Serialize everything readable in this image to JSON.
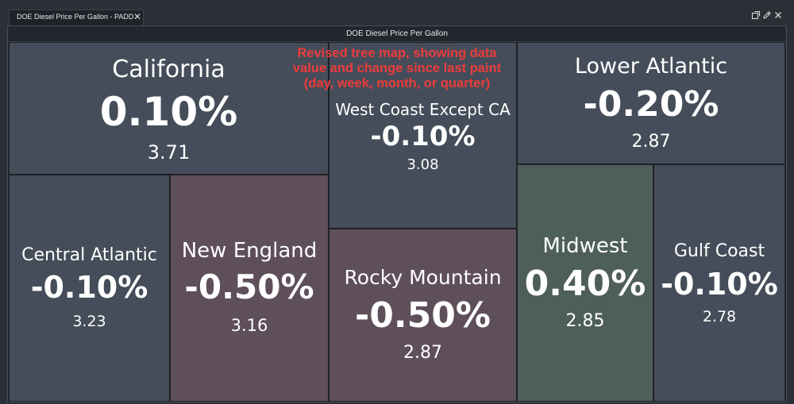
{
  "tab": {
    "label": "DOE Diesel Price Per Gallon - PADD",
    "close_glyph": "✕"
  },
  "window_controls": [
    {
      "icon": "popout-icon"
    },
    {
      "icon": "edit-icon"
    },
    {
      "icon": "close-icon"
    }
  ],
  "panel": {
    "title": "DOE Diesel Price Per Gallon"
  },
  "annotation": {
    "line1": "Revised tree map, showing data",
    "line2": "value and change since last paint",
    "line3": "(day, week, month, or quarter)"
  },
  "colors": {
    "neutral": "#444d59",
    "negative_strong": "#5e4f5a",
    "positive_strong": "#4e5e5a",
    "annotation": "#ec3c3c"
  },
  "tiles": {
    "california": {
      "name": "California",
      "change": "0.10%",
      "value": "3.71"
    },
    "west_coast": {
      "name": "West Coast Except CA",
      "change": "-0.10%",
      "value": "3.08"
    },
    "lower_atlantic": {
      "name": "Lower Atlantic",
      "change": "-0.20%",
      "value": "2.87"
    },
    "central_atlantic": {
      "name": "Central Atlantic",
      "change": "-0.10%",
      "value": "3.23"
    },
    "new_england": {
      "name": "New England",
      "change": "-0.50%",
      "value": "3.16"
    },
    "rocky_mountain": {
      "name": "Rocky Mountain",
      "change": "-0.50%",
      "value": "2.87"
    },
    "midwest": {
      "name": "Midwest",
      "change": "0.40%",
      "value": "2.85"
    },
    "gulf_coast": {
      "name": "Gulf Coast",
      "change": "-0.10%",
      "value": "2.78"
    }
  }
}
